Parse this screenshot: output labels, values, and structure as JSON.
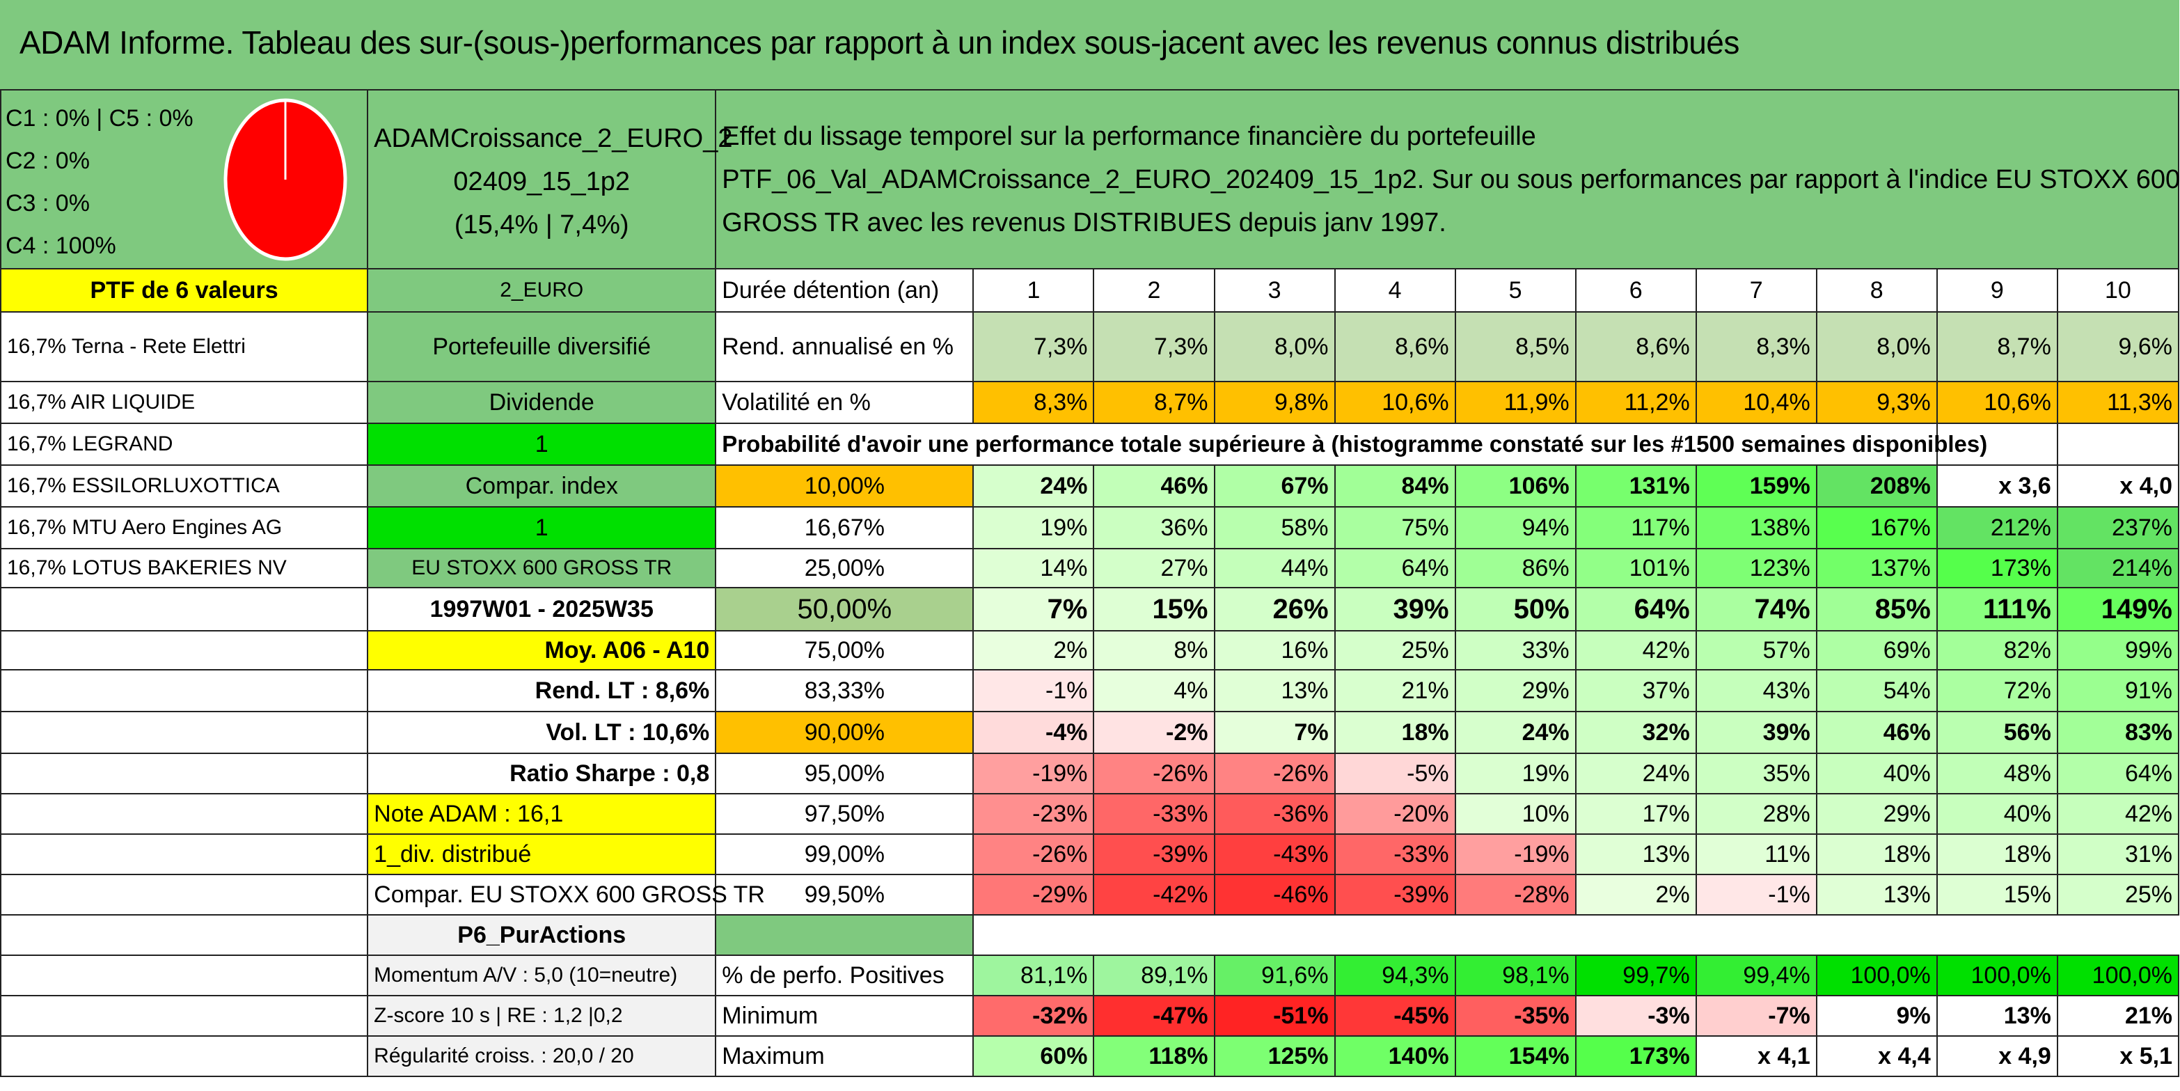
{
  "title": "ADAM Informe. Tableau des sur-(sous-)performances par rapport à un index sous-jacent avec les revenus connus distribués",
  "composition": [
    "C1 : 0% | C5 : 0%",
    "C2 : 0%",
    "C3 : 0%",
    "C4 : 100%"
  ],
  "pie": {
    "fill": "#ff0000",
    "stroke": "#ffffff",
    "share_c4": 100
  },
  "fund": {
    "name_line1": "ADAMCroissance_2_EURO_2",
    "name_line2": "02409_15_1p2",
    "stats": "(15,4% | 7,4%)"
  },
  "description": {
    "line1": "Effet du lissage temporel sur la performance financière du portefeuille",
    "line2": "PTF_06_Val_ADAMCroissance_2_EURO_202409_15_1p2. Sur ou sous performances par rapport à l'indice EU STOXX 600",
    "line3": "GROSS TR avec les revenus DISTRIBUES depuis janv 1997."
  },
  "left": {
    "ptf_header": "PTF de 6 valeurs",
    "holdings": [
      "16,7% Terna - Rete Elettri",
      "16,7% AIR LIQUIDE",
      "16,7% LEGRAND",
      "16,7% ESSILORLUXOTTICA",
      "16,7% MTU Aero Engines AG",
      "16,7% LOTUS BAKERIES NV"
    ],
    "momentum": "Momentum A/V : 5,0 (10=neutre)",
    "zscore": "Z-score 10 s | RE : 1,2 |0,2",
    "regularite": "Régularité croiss. : 20,0 / 20"
  },
  "mid": {
    "currency": "2_EURO",
    "portfolio_type": "Portefeuille diversifié",
    "dividende_label": "Dividende",
    "dividende_value": "1",
    "compar_label": "Compar. index",
    "compar_value": "1",
    "index_name": "EU STOXX 600 GROSS TR",
    "period": "1997W01 - 2025W35",
    "moy": "Moy. A06 - A10",
    "rend_lt": "Rend. LT : 8,6%",
    "vol_lt": "Vol. LT : 10,6%",
    "sharpe": "Ratio Sharpe : 0,8",
    "note": "Note ADAM : 16,1",
    "div": "1_div. distribué",
    "compar_full": "Compar. EU STOXX 600 GROSS TR",
    "p6": "P6_PurActions"
  },
  "table": {
    "duree_label": "Durée détention (an)",
    "years": [
      "1",
      "2",
      "3",
      "4",
      "5",
      "6",
      "7",
      "8",
      "9",
      "10"
    ],
    "rend_label": "Rend. annualisé en %",
    "rend": [
      "7,3%",
      "7,3%",
      "8,0%",
      "8,6%",
      "8,5%",
      "8,6%",
      "8,3%",
      "8,0%",
      "8,7%",
      "9,6%"
    ],
    "vol_label": "Volatilité en %",
    "vol": [
      "8,3%",
      "8,7%",
      "9,8%",
      "10,6%",
      "11,9%",
      "11,2%",
      "10,4%",
      "9,3%",
      "10,6%",
      "11,3%"
    ],
    "proba_label": "Probabilité d'avoir une performance totale supérieure à (histogramme constaté sur les #1500 semaines disponibles)",
    "pct_rows": [
      {
        "p": "10,00%",
        "v": [
          "24%",
          "46%",
          "67%",
          "84%",
          "106%",
          "131%",
          "159%",
          "208%",
          "x 3,6",
          "x 4,0"
        ]
      },
      {
        "p": "16,67%",
        "v": [
          "19%",
          "36%",
          "58%",
          "75%",
          "94%",
          "117%",
          "138%",
          "167%",
          "212%",
          "237%"
        ]
      },
      {
        "p": "25,00%",
        "v": [
          "14%",
          "27%",
          "44%",
          "64%",
          "86%",
          "101%",
          "123%",
          "137%",
          "173%",
          "214%"
        ]
      },
      {
        "p": "50,00%",
        "v": [
          "7%",
          "15%",
          "26%",
          "39%",
          "50%",
          "64%",
          "74%",
          "85%",
          "111%",
          "149%"
        ]
      },
      {
        "p": "75,00%",
        "v": [
          "2%",
          "8%",
          "16%",
          "25%",
          "33%",
          "42%",
          "57%",
          "69%",
          "82%",
          "99%"
        ]
      },
      {
        "p": "83,33%",
        "v": [
          "-1%",
          "4%",
          "13%",
          "21%",
          "29%",
          "37%",
          "43%",
          "54%",
          "72%",
          "91%"
        ]
      },
      {
        "p": "90,00%",
        "v": [
          "-4%",
          "-2%",
          "7%",
          "18%",
          "24%",
          "32%",
          "39%",
          "46%",
          "56%",
          "83%"
        ]
      },
      {
        "p": "95,00%",
        "v": [
          "-19%",
          "-26%",
          "-26%",
          "-5%",
          "19%",
          "24%",
          "35%",
          "40%",
          "48%",
          "64%"
        ]
      },
      {
        "p": "97,50%",
        "v": [
          "-23%",
          "-33%",
          "-36%",
          "-20%",
          "10%",
          "17%",
          "28%",
          "29%",
          "40%",
          "42%"
        ]
      },
      {
        "p": "99,00%",
        "v": [
          "-26%",
          "-39%",
          "-43%",
          "-33%",
          "-19%",
          "13%",
          "11%",
          "18%",
          "18%",
          "31%"
        ]
      },
      {
        "p": "99,50%",
        "v": [
          "-29%",
          "-42%",
          "-46%",
          "-39%",
          "-28%",
          "2%",
          "-1%",
          "13%",
          "15%",
          "25%"
        ]
      }
    ],
    "pos_label": "% de perfo. Positives",
    "pos": [
      "81,1%",
      "89,1%",
      "91,6%",
      "94,3%",
      "98,1%",
      "99,7%",
      "99,4%",
      "100,0%",
      "100,0%",
      "100,0%"
    ],
    "min_label": "Minimum",
    "min": [
      "-32%",
      "-47%",
      "-51%",
      "-45%",
      "-35%",
      "-3%",
      "-7%",
      "9%",
      "13%",
      "21%"
    ],
    "max_label": "Maximum",
    "max": [
      "60%",
      "118%",
      "125%",
      "140%",
      "154%",
      "173%",
      "x 4,1",
      "x 4,4",
      "x 4,9",
      "x 5,1"
    ]
  },
  "colors": {
    "title_green": "#7fc97f",
    "yellow": "#ffff00",
    "orange": "#ffc000",
    "bright_green": "#00e000",
    "red_text": "#e00000"
  }
}
